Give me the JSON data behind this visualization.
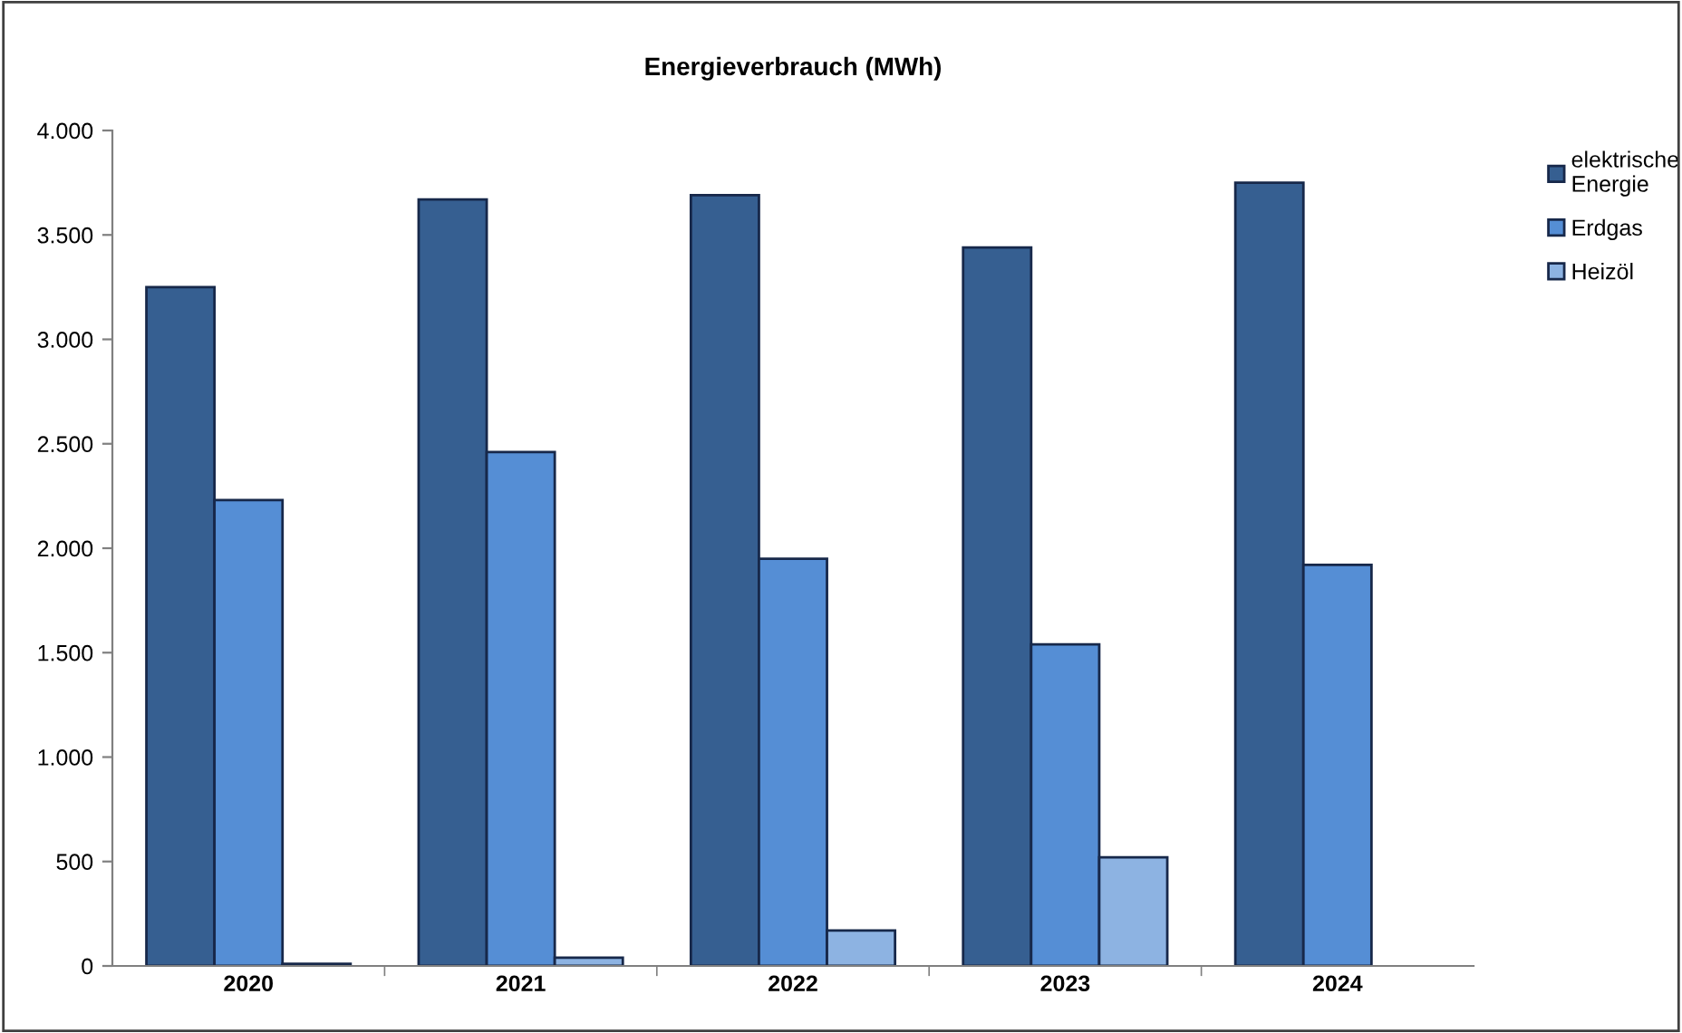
{
  "chart_data": {
    "type": "bar",
    "title": "Energieverbrauch (MWh)",
    "categories": [
      "2020",
      "2021",
      "2022",
      "2023",
      "2024"
    ],
    "series": [
      {
        "name": "elektrische\nEnergie",
        "color": "#365f91",
        "values": [
          3250,
          3670,
          3690,
          3440,
          3750
        ]
      },
      {
        "name": "Erdgas",
        "color": "#558ed5",
        "values": [
          2230,
          2460,
          1950,
          1540,
          1920
        ]
      },
      {
        "name": "Heizöl",
        "color": "#8db3e2",
        "values": [
          10,
          40,
          170,
          520,
          null
        ]
      }
    ],
    "ylim": [
      0,
      4000
    ],
    "yticks": [
      {
        "value": 0,
        "label": "0"
      },
      {
        "value": 500,
        "label": "500"
      },
      {
        "value": 1000,
        "label": "1.000"
      },
      {
        "value": 1500,
        "label": "1.500"
      },
      {
        "value": 2000,
        "label": "2.000"
      },
      {
        "value": 2500,
        "label": "2.500"
      },
      {
        "value": 3000,
        "label": "3.000"
      },
      {
        "value": 3500,
        "label": "3.500"
      },
      {
        "value": 4000,
        "label": "4.000"
      }
    ],
    "grid": false,
    "legend": "top right"
  }
}
